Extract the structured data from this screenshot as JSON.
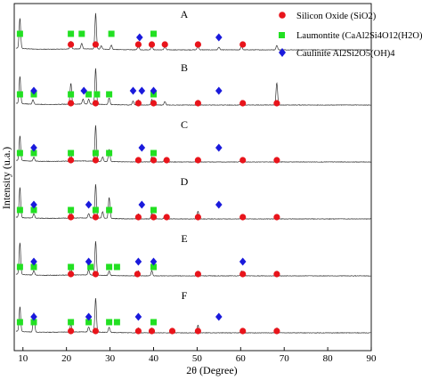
{
  "chart_data": {
    "type": "line",
    "xlabel": "2θ (Degree)",
    "ylabel": "Intensity (u.a.)",
    "xlim": [
      8,
      90
    ],
    "xticks": [
      10,
      20,
      30,
      40,
      50,
      60,
      70,
      80,
      90
    ],
    "legend_position": "top-right",
    "legend": [
      {
        "marker": "circle",
        "color": "#e8141b",
        "text": "Silicon Oxide (SiO2)"
      },
      {
        "marker": "square",
        "color": "#22e022",
        "text": "Laumontite (CaAl2Si4O12(H2O)4)"
      },
      {
        "marker": "diamond",
        "color": "#1a1adc",
        "text": "Caulinite Al2Si2O5(OH)4"
      }
    ],
    "patterns": [
      {
        "label": "A",
        "peaks": [
          [
            9.3,
            55
          ],
          [
            21,
            14
          ],
          [
            23.5,
            10
          ],
          [
            26.7,
            65
          ],
          [
            28,
            6
          ],
          [
            30.3,
            8
          ],
          [
            36.5,
            8
          ],
          [
            39.6,
            9
          ],
          [
            42.6,
            6
          ],
          [
            50.2,
            8
          ],
          [
            55,
            5
          ],
          [
            60.2,
            7
          ],
          [
            68.3,
            8
          ]
        ],
        "silicon_oxide": [
          21,
          26.7,
          36.5,
          39.6,
          42.6,
          50.2,
          60.5
        ],
        "laumontite": [
          9.3,
          21,
          23.5,
          30.3,
          40
        ],
        "caulinite": [
          36.8,
          55
        ]
      },
      {
        "label": "B",
        "peaks": [
          [
            9.3,
            50
          ],
          [
            12.3,
            8
          ],
          [
            21,
            38
          ],
          [
            23.8,
            9
          ],
          [
            25.1,
            9
          ],
          [
            26.7,
            65
          ],
          [
            29.8,
            12
          ],
          [
            35.3,
            7
          ],
          [
            36.5,
            9
          ],
          [
            39.6,
            10
          ],
          [
            42.6,
            6
          ],
          [
            50.2,
            9
          ],
          [
            60.2,
            8
          ],
          [
            68.3,
            40
          ]
        ],
        "silicon_oxide": [
          21,
          26.7,
          36.5,
          40,
          50.2,
          60.5,
          68.3
        ],
        "laumontite": [
          9.3,
          12.5,
          21,
          25.1,
          27,
          29.8,
          40
        ],
        "caulinite": [
          12.5,
          24,
          35.3,
          37.3,
          40,
          55
        ]
      },
      {
        "label": "C",
        "peaks": [
          [
            9.3,
            45
          ],
          [
            12.5,
            7
          ],
          [
            21,
            14
          ],
          [
            26.7,
            65
          ],
          [
            28.3,
            8
          ],
          [
            29.8,
            22
          ],
          [
            36.5,
            8
          ],
          [
            39.6,
            9
          ],
          [
            42.6,
            6
          ],
          [
            50.2,
            9
          ],
          [
            60.2,
            7
          ],
          [
            68.3,
            8
          ]
        ],
        "silicon_oxide": [
          21,
          26.7,
          36.5,
          40,
          43,
          50.2,
          60.5,
          68.3
        ],
        "laumontite": [
          9.3,
          12.5,
          21,
          26.7,
          29.8,
          40
        ],
        "caulinite": [
          12.5,
          37.3,
          55
        ]
      },
      {
        "label": "D",
        "peaks": [
          [
            9.3,
            55
          ],
          [
            12.5,
            8
          ],
          [
            21,
            18
          ],
          [
            25.1,
            8
          ],
          [
            26.7,
            62
          ],
          [
            28.3,
            12
          ],
          [
            29.8,
            38
          ],
          [
            36.5,
            9
          ],
          [
            39.6,
            10
          ],
          [
            42.6,
            6
          ],
          [
            50.2,
            14
          ],
          [
            60.2,
            7
          ],
          [
            68.3,
            8
          ]
        ],
        "silicon_oxide": [
          21,
          26.7,
          36.5,
          40,
          43,
          50.2,
          60.5,
          68.3
        ],
        "laumontite": [
          9.3,
          12.5,
          21,
          26.7,
          29.8,
          40
        ],
        "caulinite": [
          12.5,
          25.1,
          37.3,
          55
        ]
      },
      {
        "label": "E",
        "peaks": [
          [
            9.3,
            58
          ],
          [
            12.5,
            8
          ],
          [
            21,
            14
          ],
          [
            25.1,
            9
          ],
          [
            26.7,
            62
          ],
          [
            29.8,
            8
          ],
          [
            36.5,
            9
          ],
          [
            39.6,
            9
          ],
          [
            50.2,
            8
          ],
          [
            60.2,
            9
          ],
          [
            68.3,
            8
          ]
        ],
        "silicon_oxide": [
          21,
          26.7,
          36.3,
          50.2,
          60.5,
          68.3
        ],
        "laumontite": [
          9.3,
          12.5,
          21,
          25.5,
          29.8,
          31.6,
          40
        ],
        "caulinite": [
          12.5,
          25.1,
          36.5,
          40,
          60.5
        ]
      },
      {
        "label": "F",
        "peaks": [
          [
            9.3,
            45
          ],
          [
            12.5,
            35
          ],
          [
            21,
            14
          ],
          [
            25.1,
            9
          ],
          [
            26.7,
            62
          ],
          [
            29.8,
            9
          ],
          [
            36.5,
            9
          ],
          [
            39.6,
            9
          ],
          [
            44.3,
            5
          ],
          [
            50.2,
            14
          ],
          [
            60.2,
            6
          ],
          [
            68.3,
            9
          ]
        ],
        "silicon_oxide": [
          21,
          26.7,
          36.5,
          39.6,
          44.3,
          50.2,
          60.5,
          68.3
        ],
        "laumontite": [
          9.3,
          12.5,
          21,
          25.1,
          29.8,
          31.6,
          40
        ],
        "caulinite": [
          12.5,
          25.1,
          36.5,
          55
        ]
      }
    ]
  }
}
